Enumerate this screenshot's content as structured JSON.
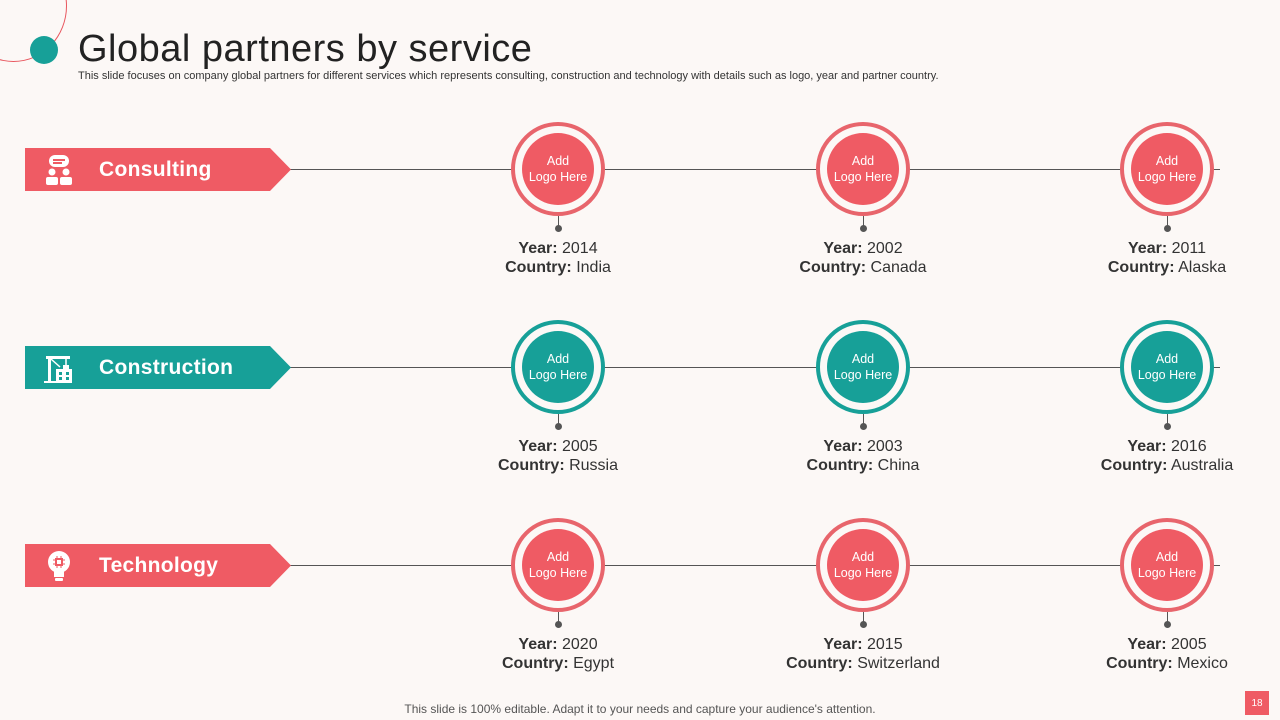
{
  "header": {
    "title": "Global partners by service",
    "subtitle": "This slide focuses on company global partners for different services which represents consulting, construction and technology with details such as logo, year and partner country."
  },
  "labels": {
    "logo_line1": "Add",
    "logo_line2": "Logo Here",
    "year_label": "Year:",
    "country_label": "Country:"
  },
  "services": [
    {
      "name": "Consulting",
      "icon": "consulting-team-icon",
      "color": "#ef5b64",
      "partners": [
        {
          "year": "2014",
          "country": "India"
        },
        {
          "year": "2002",
          "country": "Canada"
        },
        {
          "year": "2011",
          "country": "Alaska"
        }
      ]
    },
    {
      "name": "Construction",
      "icon": "construction-crane-icon",
      "color": "#17a098",
      "partners": [
        {
          "year": "2005",
          "country": "Russia"
        },
        {
          "year": "2003",
          "country": "China"
        },
        {
          "year": "2016",
          "country": "Australia"
        }
      ]
    },
    {
      "name": "Technology",
      "icon": "lightbulb-chip-icon",
      "color": "#ef5b64",
      "partners": [
        {
          "year": "2020",
          "country": "Egypt"
        },
        {
          "year": "2015",
          "country": "Switzerland"
        },
        {
          "year": "2005",
          "country": "Mexico"
        }
      ]
    }
  ],
  "footer": {
    "text": "This slide is 100% editable. Adapt it to your needs and capture your audience's attention.",
    "page_number": "18"
  }
}
